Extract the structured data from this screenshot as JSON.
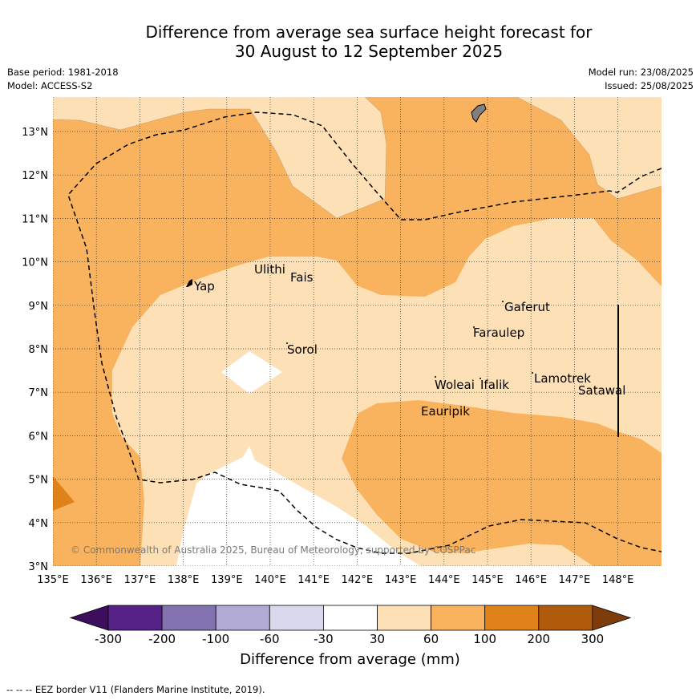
{
  "header": {
    "title_line1": "Difference from average sea surface height forecast for",
    "title_line2": "30 August to 12 September 2025",
    "base_period": "Base period: 1981-2018",
    "model": "Model: ACCESS-S2",
    "model_run": "Model run: 23/08/2025",
    "issued": "Issued: 25/08/2025"
  },
  "map": {
    "lon_ticks": [
      "135°E",
      "136°E",
      "137°E",
      "138°E",
      "139°E",
      "140°E",
      "141°E",
      "142°E",
      "143°E",
      "144°E",
      "145°E",
      "146°E",
      "147°E",
      "148°E"
    ],
    "lat_ticks": [
      "13°N",
      "12°N",
      "11°N",
      "10°N",
      "9°N",
      "8°N",
      "7°N",
      "6°N",
      "5°N",
      "4°N",
      "3°N"
    ],
    "places": {
      "yap": "Yap",
      "ulithi": "Ulithi",
      "fais": "Fais",
      "sorol": "Sorol",
      "gaferut": "Gaferut",
      "faraulep": "Faraulep",
      "woleai": "Woleai",
      "ifalik": "Ifalik",
      "lamotrek": "Lamotrek",
      "satawal": "Satawal",
      "eauripik": "Eauripik"
    },
    "copyright": "© Commonwealth of Australia 2025, Bureau of Meteorology, supported by COSPPac",
    "colors": {
      "c30_60": "#fde0b6",
      "c60_100": "#f9b35e",
      "c100_200": "#e0821a",
      "c200_300": "#b05a0c",
      "c_gt300": "#7f3c0b",
      "neutral": "#ffffff",
      "m_30_60": "#d8d9ec",
      "m_60_100": "#b1aad2",
      "m_100_200": "#8273b0",
      "m_200_300": "#552187",
      "m_lt300": "#3d0e5e"
    }
  },
  "colorbar": {
    "labels": [
      "-300",
      "-200",
      "-100",
      "-60",
      "-30",
      "30",
      "60",
      "100",
      "200",
      "300"
    ],
    "title": "Difference from average (mm)"
  },
  "legend": {
    "eez": "--  --  -- EEZ border V11 (Flanders Marine Institute, 2019)."
  }
}
